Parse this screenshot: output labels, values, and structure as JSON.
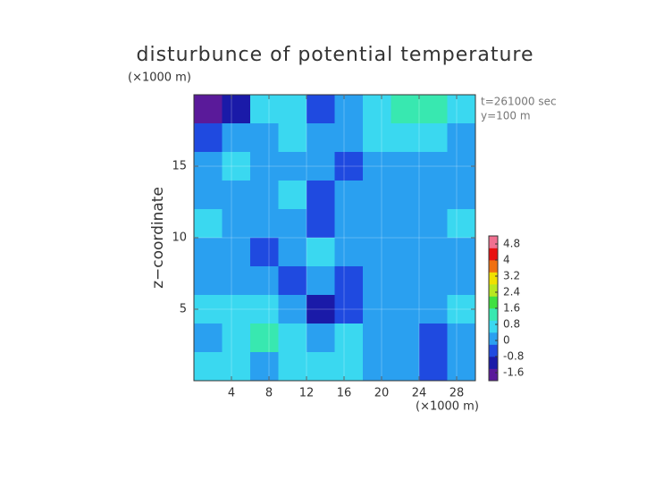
{
  "chart_data": {
    "type": "contour",
    "title": "disturbunce of potential temperature",
    "x_unit_label": "(×1000 m)",
    "y_unit_label": "(×1000 m)",
    "ylabel": "z−coordinate",
    "annotations": [
      "t=261000 sec",
      "y=100 m"
    ],
    "x": [
      1.5,
      4.5,
      7.5,
      10.5,
      13.5,
      16.5,
      19.5,
      22.5,
      25.5,
      28.5
    ],
    "y": [
      19,
      17,
      15,
      13,
      11,
      9,
      7,
      5,
      3,
      1
    ],
    "z": [
      [
        -1.6,
        -1.0,
        0.4,
        0.6,
        -0.4,
        0.2,
        0.4,
        1.2,
        1.0,
        0.8
      ],
      [
        -0.6,
        -0.2,
        0.2,
        0.4,
        -0.2,
        0.2,
        0.4,
        0.4,
        0.8,
        0.2
      ],
      [
        0.2,
        0.4,
        0.2,
        0.2,
        0,
        -0.4,
        0,
        0.2,
        0,
        0.2
      ],
      [
        0.2,
        0.2,
        0.2,
        0.4,
        -0.4,
        0.2,
        0.2,
        0,
        0.2,
        0.2
      ],
      [
        0.4,
        0.2,
        0,
        0.2,
        -0.4,
        0.2,
        0.2,
        0.2,
        0.2,
        0.4
      ],
      [
        0.2,
        0,
        -0.4,
        0.2,
        0.4,
        0,
        0.2,
        0.2,
        0,
        0.2
      ],
      [
        0.2,
        0.2,
        0,
        -0.6,
        0.2,
        -0.6,
        0,
        0.2,
        0.2,
        0.2
      ],
      [
        0.8,
        0.4,
        0.4,
        0.2,
        -1.2,
        -0.8,
        -0.2,
        0.2,
        0.2,
        0.4
      ],
      [
        0.2,
        0.6,
        1.0,
        0.4,
        0.2,
        0.4,
        0,
        0.2,
        -0.6,
        0
      ],
      [
        0.4,
        0.6,
        -0.2,
        0.4,
        0.6,
        0.4,
        0.2,
        0,
        -0.8,
        -0.2
      ]
    ],
    "xlim": [
      0,
      30
    ],
    "ylim": [
      0,
      20
    ],
    "xticks": [
      4,
      8,
      12,
      16,
      20,
      24,
      28
    ],
    "yticks": [
      5,
      10,
      15
    ],
    "clim": [
      -2,
      5.2
    ],
    "cticks": [
      -1.6,
      -0.8,
      0,
      0.8,
      1.6,
      2.4,
      3.2,
      4,
      4.8
    ],
    "colormap": [
      "#5a1a9a",
      "#1a1aa8",
      "#1f4ae0",
      "#2aa0f0",
      "#3ad8f0",
      "#38e8b0",
      "#40e040",
      "#b8e820",
      "#f0e000",
      "#f07010",
      "#e81010",
      "#f07090"
    ]
  }
}
